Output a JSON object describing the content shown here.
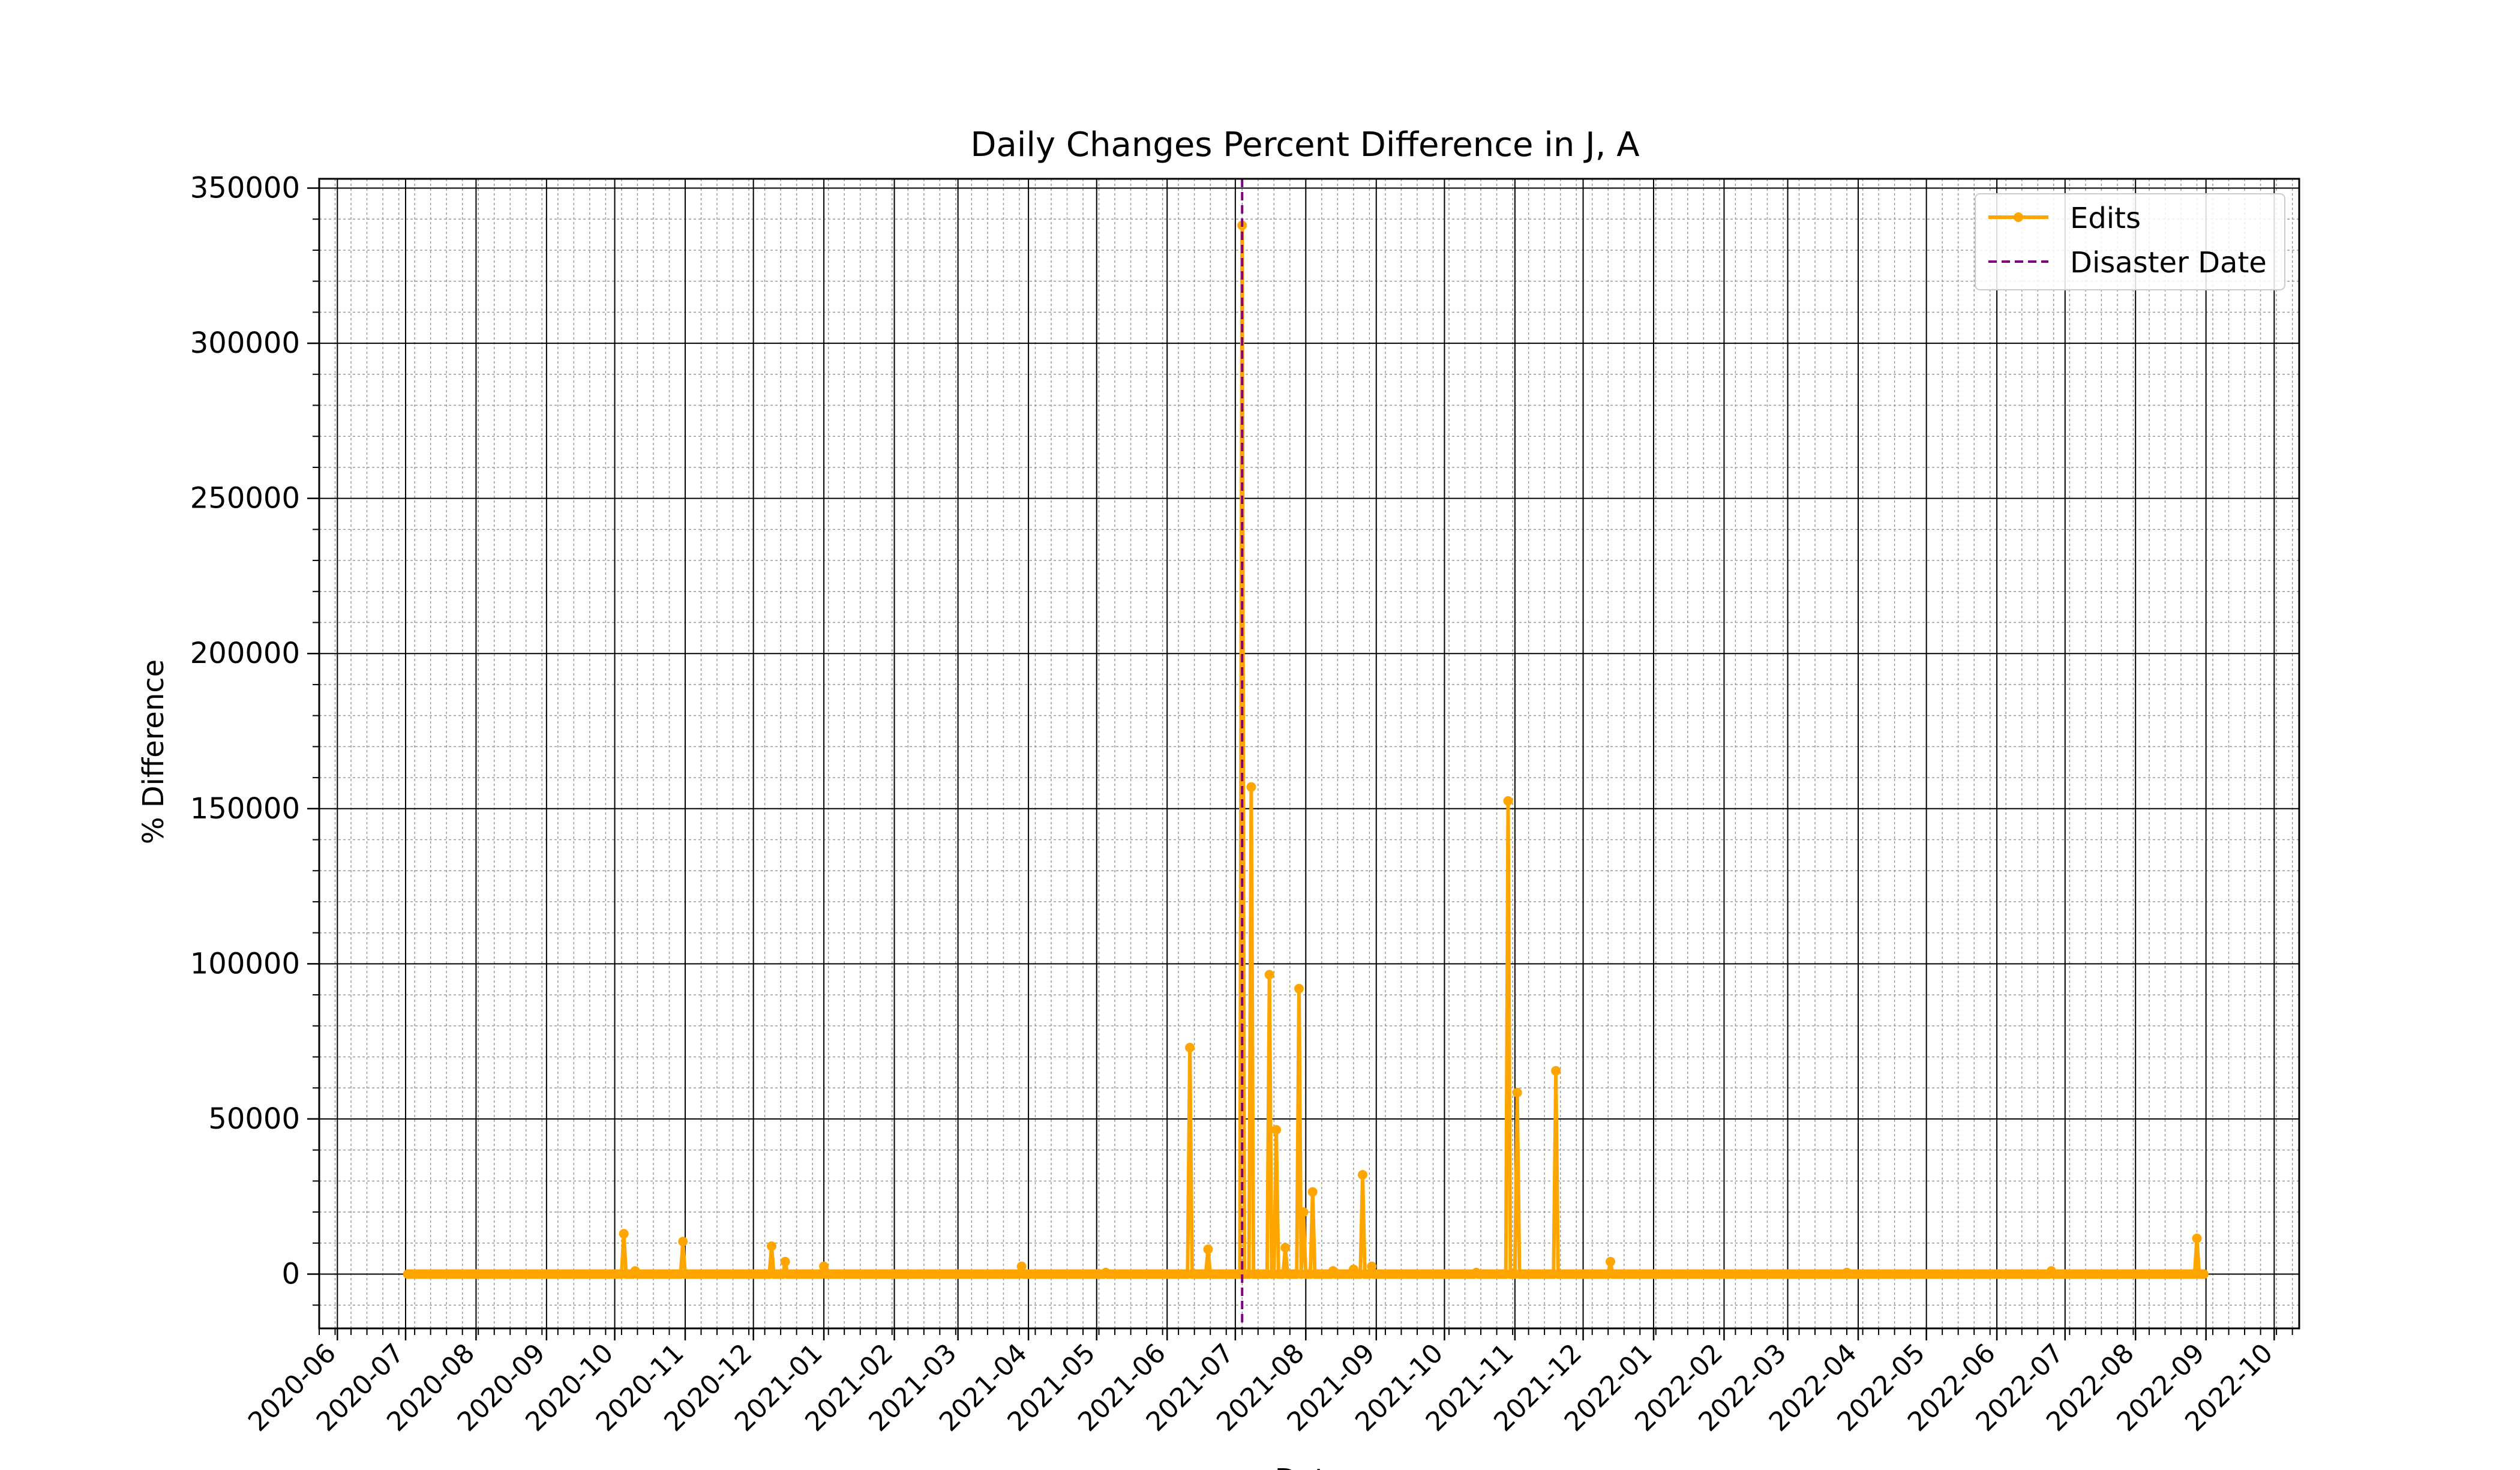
{
  "chart_data": {
    "type": "line",
    "title": "Daily Changes Percent Difference in J, A",
    "xlabel": "Date",
    "ylabel": "% Difference",
    "x_ticks": [
      "2020-06",
      "2020-07",
      "2020-08",
      "2020-09",
      "2020-10",
      "2020-11",
      "2020-12",
      "2021-01",
      "2021-02",
      "2021-03",
      "2021-04",
      "2021-05",
      "2021-06",
      "2021-07",
      "2021-08",
      "2021-09",
      "2021-10",
      "2021-11",
      "2021-12",
      "2022-01",
      "2022-02",
      "2022-03",
      "2022-04",
      "2022-05",
      "2022-06",
      "2022-07",
      "2022-08",
      "2022-09",
      "2022-10"
    ],
    "y_ticks": [
      "0",
      "50000",
      "100000",
      "150000",
      "200000",
      "250000",
      "300000",
      "350000"
    ],
    "xlim": [
      "2020-05-24",
      "2022-10-12"
    ],
    "ylim": [
      -17500,
      353000
    ],
    "grid": true,
    "legend_position": "upper right",
    "legend": {
      "edits": "Edits",
      "disaster": "Disaster Date"
    },
    "colors": {
      "edits": "#ffa500",
      "disaster": "#800080",
      "grid_major": "#000000",
      "grid_minor": "#999999"
    },
    "disaster_date": "2021-07-04",
    "series": [
      {
        "name": "Edits",
        "start": "2020-07-02",
        "end": "2022-08-31",
        "baseline": 0,
        "spikes": [
          [
            "2020-10-05",
            13000
          ],
          [
            "2020-10-10",
            1000
          ],
          [
            "2020-10-31",
            10500
          ],
          [
            "2020-12-09",
            9000
          ],
          [
            "2020-12-15",
            4000
          ],
          [
            "2021-01-01",
            2500
          ],
          [
            "2021-03-29",
            2500
          ],
          [
            "2021-05-05",
            500
          ],
          [
            "2021-06-11",
            73000
          ],
          [
            "2021-06-19",
            8000
          ],
          [
            "2021-07-04",
            338000
          ],
          [
            "2021-07-08",
            157000
          ],
          [
            "2021-07-16",
            96500
          ],
          [
            "2021-07-19",
            46500
          ],
          [
            "2021-07-23",
            8500
          ],
          [
            "2021-07-29",
            92000
          ],
          [
            "2021-07-31",
            20000
          ],
          [
            "2021-08-04",
            26500
          ],
          [
            "2021-08-13",
            1000
          ],
          [
            "2021-08-22",
            1500
          ],
          [
            "2021-08-26",
            32000
          ],
          [
            "2021-08-30",
            2500
          ],
          [
            "2021-10-15",
            500
          ],
          [
            "2021-10-29",
            152500
          ],
          [
            "2021-11-02",
            58500
          ],
          [
            "2021-11-19",
            65500
          ],
          [
            "2021-12-13",
            4000
          ],
          [
            "2022-03-27",
            500
          ],
          [
            "2022-06-25",
            1000
          ],
          [
            "2022-08-28",
            11500
          ]
        ]
      }
    ]
  }
}
